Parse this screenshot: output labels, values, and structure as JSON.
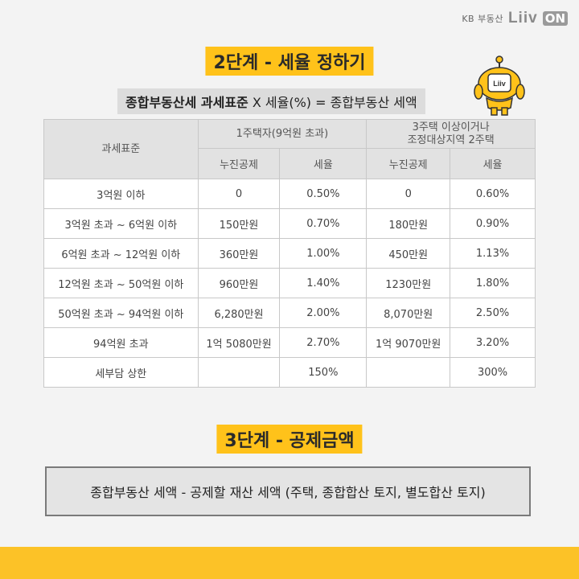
{
  "brand": {
    "kb": "KB 부동산",
    "liiv": "Liiv",
    "on": "ON"
  },
  "step2": {
    "title": "2단계 - 세율 정하기"
  },
  "formula": {
    "bold": "종합부동산세 과세표준",
    "rest": " X 세율(%) = 종합부동산 세액"
  },
  "mascot": {
    "badge": "Liiv"
  },
  "table": {
    "header": {
      "base": "과세표준",
      "group1": "1주택자(9억원 초과)",
      "group2_line1": "3주택 이상이거나",
      "group2_line2": "조정대상지역 2주택",
      "deduction": "누진공제",
      "rate": "세율"
    },
    "rows": [
      {
        "range": "3억원 이하",
        "d1": "0",
        "r1": "0.50%",
        "d2": "0",
        "r2": "0.60%"
      },
      {
        "range": "3억원 초과 ~ 6억원 이하",
        "d1": "150만원",
        "r1": "0.70%",
        "d2": "180만원",
        "r2": "0.90%"
      },
      {
        "range": "6억원 초과 ~ 12억원 이하",
        "d1": "360만원",
        "r1": "1.00%",
        "d2": "450만원",
        "r2": "1.13%"
      },
      {
        "range": "12억원 초과 ~ 50억원 이하",
        "d1": "960만원",
        "r1": "1.40%",
        "d2": "1230만원",
        "r2": "1.80%"
      },
      {
        "range": "50억원 초과 ~ 94억원 이하",
        "d1": "6,280만원",
        "r1": "2.00%",
        "d2": "8,070만원",
        "r2": "2.50%"
      },
      {
        "range": "94억원 초과",
        "d1": "1억 5080만원",
        "r1": "2.70%",
        "d2": "1억 9070만원",
        "r2": "3.20%"
      },
      {
        "range": "세부담 상한",
        "d1": "",
        "r1": "150%",
        "d2": "",
        "r2": "300%"
      }
    ]
  },
  "step3": {
    "title": "3단계 - 공제금액"
  },
  "bottom": {
    "text": "종합부동산 세액 - 공제할 재산 세액 (주택, 종합합산 토지, 별도합산 토지)"
  },
  "colors": {
    "accent": "#ffc21a",
    "footer": "#fcc227"
  }
}
